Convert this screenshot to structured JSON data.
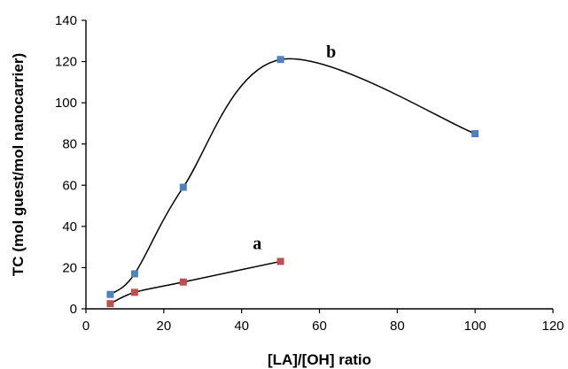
{
  "chart_data": {
    "type": "line",
    "title": "",
    "xlabel": "[LA]/[OH] ratio",
    "ylabel": "TC (mol guest/mol nanocarrier)",
    "xlim": [
      0,
      120
    ],
    "ylim": [
      0,
      140
    ],
    "xticks": [
      0,
      20,
      40,
      60,
      80,
      100,
      120
    ],
    "yticks": [
      0,
      20,
      40,
      60,
      80,
      100,
      120,
      140
    ],
    "grid": false,
    "legend": "none",
    "series": [
      {
        "name": "b",
        "color": "#4f81bd",
        "marker": "square",
        "smooth": true,
        "x": [
          6.25,
          12.5,
          25,
          50,
          100
        ],
        "y": [
          7,
          17,
          59,
          121,
          85
        ]
      },
      {
        "name": "a",
        "color": "#c0504d",
        "marker": "square",
        "smooth": true,
        "x": [
          6.25,
          12.5,
          25,
          50
        ],
        "y": [
          2.5,
          8,
          13,
          23
        ]
      }
    ],
    "annotations": [
      {
        "text": "b",
        "x": 63,
        "y": 122
      },
      {
        "text": "a",
        "x": 44,
        "y": 29
      }
    ]
  }
}
